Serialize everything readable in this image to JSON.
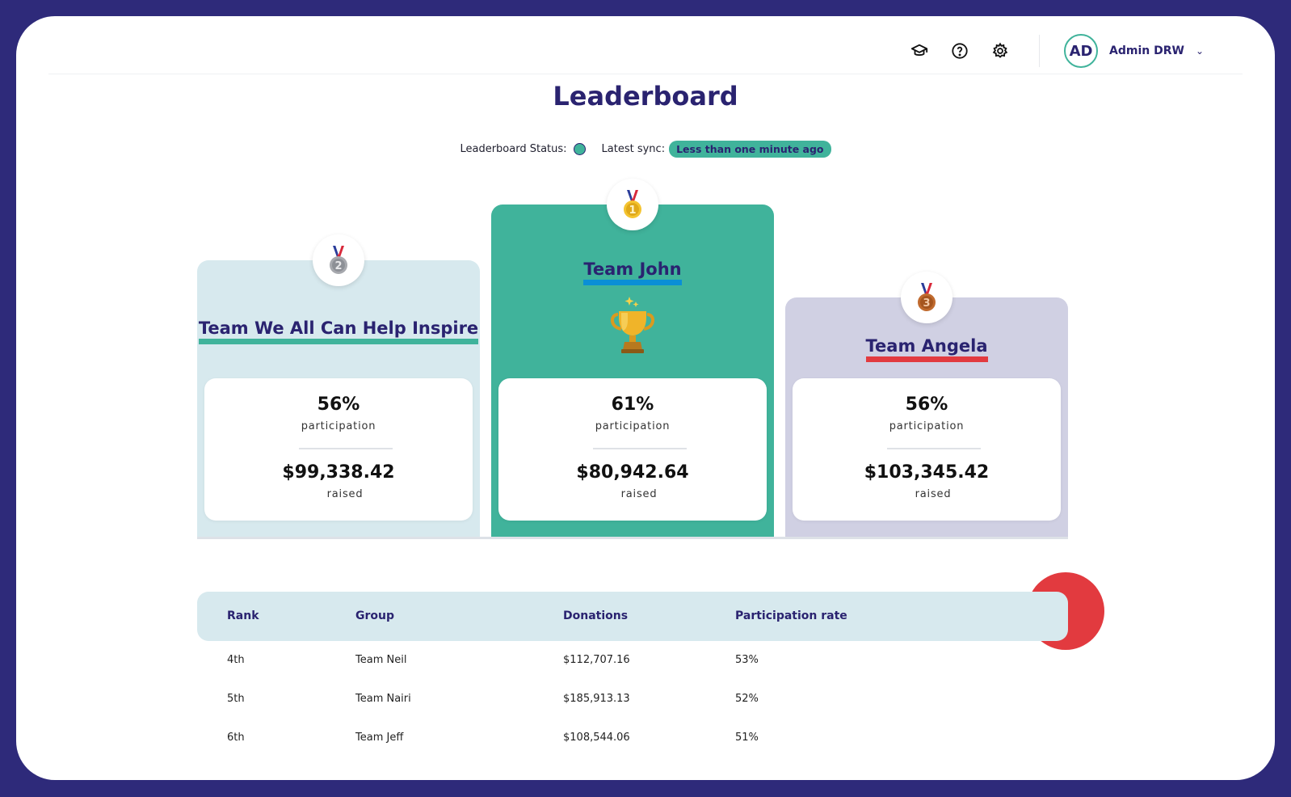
{
  "header": {
    "icons": [
      "graduation-cap-icon",
      "help-circle-icon",
      "gear-icon"
    ],
    "user": {
      "initials": "AD",
      "name": "Admin DRW"
    }
  },
  "page": {
    "title": "Leaderboard",
    "status_label": "Leaderboard Status:",
    "status_color": "#40b39b",
    "sync_label": "Latest sync:",
    "sync_value": "Less than one minute ago"
  },
  "podium": [
    {
      "place": 2,
      "medal": "silver-medal-icon",
      "team": "Team We All Can Help Inspire",
      "participation": "56%",
      "participation_label": "participation",
      "raised": "$99,338.42",
      "raised_label": "raised",
      "color": "#d7e9ee",
      "underline": "#40b39b"
    },
    {
      "place": 1,
      "medal": "gold-medal-icon",
      "team": "Team John",
      "participation": "61%",
      "participation_label": "participation",
      "raised": "$80,942.64",
      "raised_label": "raised",
      "color": "#40b39b",
      "underline": "#0a8fd6"
    },
    {
      "place": 3,
      "medal": "bronze-medal-icon",
      "team": "Team Angela",
      "participation": "56%",
      "participation_label": "participation",
      "raised": "$103,345.42",
      "raised_label": "raised",
      "color": "#d0d0e3",
      "underline": "#e23a3f"
    }
  ],
  "table": {
    "headers": [
      "Rank",
      "Group",
      "Donations",
      "Participation rate"
    ],
    "rows": [
      {
        "rank": "4th",
        "group": "Team Neil",
        "donations": "$112,707.16",
        "rate": "53%"
      },
      {
        "rank": "5th",
        "group": "Team Nairi",
        "donations": "$185,913.13",
        "rate": "52%"
      },
      {
        "rank": "6th",
        "group": "Team Jeff",
        "donations": "$108,544.06",
        "rate": "51%"
      }
    ]
  }
}
